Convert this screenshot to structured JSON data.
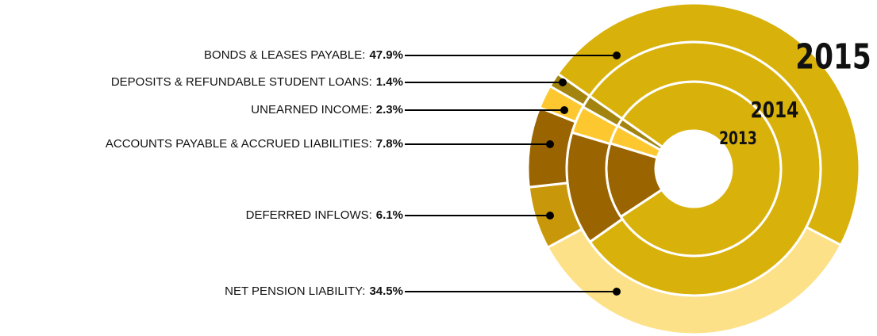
{
  "chart_data": {
    "type": "donut",
    "categories": [
      "BONDS & LEASES PAYABLE:",
      "NET PENSION LIABILITY:",
      "DEFERRED INFLOWS:",
      "ACCOUNTS PAYABLE & ACCRUED LIABILITIES:",
      "UNEARNED INCOME:",
      "DEPOSITS & REFUNDABLE STUDENT LOANS:"
    ],
    "colors": [
      "#d9b10b",
      "#fde188",
      "#c9980a",
      "#9a6400",
      "#fdc82f",
      "#a3840f"
    ],
    "series": [
      {
        "name": "2013",
        "values": [
          81,
          0,
          0,
          14,
          3.5,
          1.5
        ]
      },
      {
        "name": "2014",
        "values": [
          80.5,
          0,
          0,
          14.4,
          3.5,
          1.6
        ]
      },
      {
        "name": "2015",
        "values": [
          47.9,
          34.5,
          6.1,
          7.8,
          2.3,
          1.4
        ],
        "value_labels": [
          "47.9%",
          "34.5%",
          "6.1%",
          "7.8%",
          "2.3%",
          "1.4%"
        ]
      }
    ]
  }
}
